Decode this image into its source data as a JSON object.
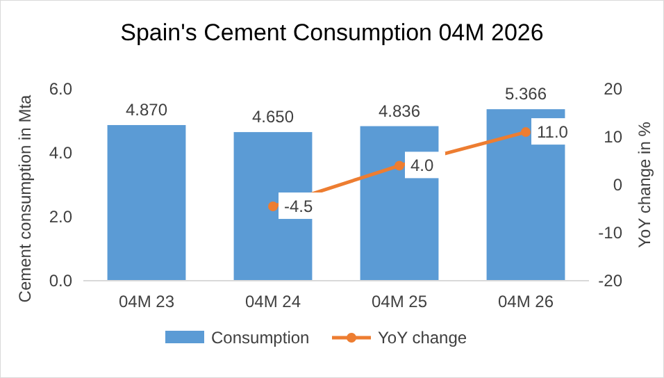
{
  "chart_data": {
    "type": "bar",
    "title": "Spain's Cement Consumption 04M 2026",
    "ylabel": "Cement consumption in Mta",
    "y2label": "YoY change in %",
    "categories": [
      "04M 23",
      "04M 24",
      "04M 25",
      "04M 26"
    ],
    "series": [
      {
        "name": "Consumption",
        "color": "#5b9bd5",
        "values": [
          4.87,
          4.65,
          4.836,
          5.366
        ],
        "value_labels": [
          "4.870",
          "4.650",
          "4.836",
          "5.366"
        ]
      },
      {
        "name": "YoY change",
        "type": "line",
        "axis": "y2",
        "color": "#ed7d31",
        "marker": "circle",
        "values": [
          null,
          -4.5,
          4.0,
          11.0
        ],
        "value_labels": [
          null,
          "-4.5",
          "4.0",
          "11.0"
        ]
      }
    ],
    "ylim": [
      0,
      6
    ],
    "yticks": [
      {
        "value": 0,
        "label": "0.0"
      },
      {
        "value": 2,
        "label": "2.0"
      },
      {
        "value": 4,
        "label": "4.0"
      },
      {
        "value": 6,
        "label": "6.0"
      }
    ],
    "y2lim": [
      -20,
      20
    ],
    "y2ticks": [
      -20,
      -10,
      0,
      10,
      20
    ],
    "legend": "bottom"
  }
}
